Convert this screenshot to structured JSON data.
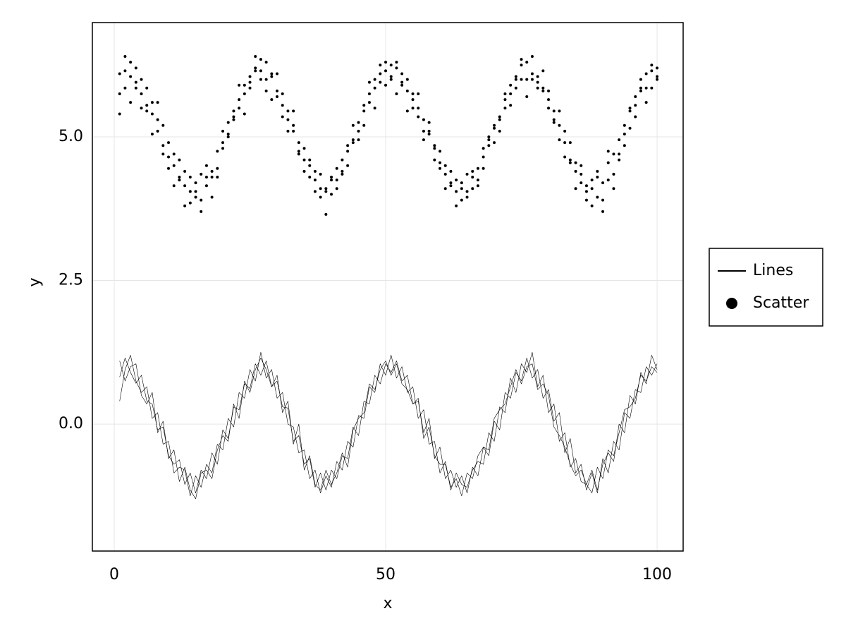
{
  "chart_data": {
    "type": "line",
    "xlabel": "x",
    "ylabel": "y",
    "xlim": [
      -4.03,
      104.8
    ],
    "ylim": [
      -2.21,
      6.99
    ],
    "xticks": [
      0,
      50,
      100
    ],
    "yticks": [
      {
        "value": 0,
        "label": "0.0"
      },
      {
        "value": 2.5,
        "label": "2.5"
      },
      {
        "value": 5,
        "label": "5.0"
      }
    ],
    "grid": true,
    "legend": "right",
    "x": [
      1,
      2,
      3,
      4,
      5,
      6,
      7,
      8,
      9,
      10,
      11,
      12,
      13,
      14,
      15,
      16,
      17,
      18,
      19,
      20,
      21,
      22,
      23,
      24,
      25,
      26,
      27,
      28,
      29,
      30,
      31,
      32,
      33,
      34,
      35,
      36,
      37,
      38,
      39,
      40,
      41,
      42,
      43,
      44,
      45,
      46,
      47,
      48,
      49,
      50,
      51,
      52,
      53,
      54,
      55,
      56,
      57,
      58,
      59,
      60,
      61,
      62,
      63,
      64,
      65,
      66,
      67,
      68,
      69,
      70,
      71,
      72,
      73,
      74,
      75,
      76,
      77,
      78,
      79,
      80,
      81,
      82,
      83,
      84,
      85,
      86,
      87,
      88,
      89,
      90,
      91,
      92,
      93,
      94,
      95,
      96,
      97,
      98,
      99,
      100
    ],
    "series": [
      {
        "name": "Lines",
        "type": "line",
        "color": "#000000",
        "values": [
          [
            0.82,
            1.15,
            0.9,
            0.71,
            0.85,
            0.4,
            0.35,
            -0.1,
            -0.05,
            -0.55,
            -0.7,
            -0.62,
            -1.05,
            -0.85,
            -1.2,
            -0.8,
            -0.95,
            -0.5,
            -0.7,
            -0.1,
            -0.25,
            0.3,
            0.25,
            0.7,
            0.62,
            1.05,
            0.85,
            1.1,
            0.65,
            0.75,
            0.3,
            0.28,
            -0.3,
            -0.2,
            -0.7,
            -0.6,
            -1.1,
            -0.85,
            -1.15,
            -0.8,
            -0.95,
            -0.55,
            -0.6,
            -0.05,
            -0.2,
            0.4,
            0.35,
            0.85,
            0.7,
            1.05,
            0.9,
            1.1,
            0.75,
            0.85,
            0.35,
            0.4,
            -0.15,
            0.1,
            -0.6,
            -0.4,
            -0.95,
            -0.8,
            -1.1,
            -0.9,
            -1.2,
            -0.75,
            -0.9,
            -0.4,
            -0.55,
            0.05,
            -0.1,
            0.55,
            0.45,
            0.9,
            0.75,
            1.15,
            0.8,
            0.95,
            0.45,
            0.6,
            0.05,
            0.2,
            -0.5,
            -0.25,
            -0.85,
            -0.7,
            -1.15,
            -0.85,
            -1.2,
            -0.6,
            -0.85,
            -0.3,
            -0.45,
            0.2,
            0.1,
            0.6,
            0.55,
            1.0,
            0.85,
            1.05
          ],
          [
            0.4,
            0.95,
            1.2,
            0.75,
            0.55,
            0.65,
            0.1,
            0.2,
            -0.35,
            -0.3,
            -0.85,
            -0.75,
            -0.8,
            -1.25,
            -0.9,
            -1.1,
            -0.7,
            -0.85,
            -0.35,
            -0.45,
            0.1,
            -0.05,
            0.55,
            0.45,
            0.95,
            0.75,
            1.25,
            0.8,
            0.95,
            0.45,
            0.55,
            0.0,
            -0.05,
            -0.5,
            -0.45,
            -0.95,
            -0.8,
            -1.2,
            -0.9,
            -1.1,
            -0.65,
            -0.8,
            -0.3,
            -0.4,
            0.15,
            0.1,
            0.65,
            0.55,
            1.05,
            0.85,
            1.2,
            0.8,
            1.0,
            0.55,
            0.65,
            0.1,
            0.25,
            -0.35,
            -0.3,
            -0.85,
            -0.65,
            -1.15,
            -0.85,
            -1.05,
            -1.1,
            -0.8,
            -0.65,
            -0.7,
            -0.15,
            -0.3,
            0.3,
            0.2,
            0.8,
            0.55,
            1.05,
            0.9,
            1.25,
            0.65,
            0.85,
            0.2,
            0.35,
            -0.3,
            -0.15,
            -0.75,
            -0.6,
            -1.0,
            -1.05,
            -0.8,
            -1.15,
            -0.7,
            -0.5,
            -0.65,
            0.0,
            -0.15,
            0.5,
            0.35,
            0.9,
            0.7,
            1.2,
            0.95
          ],
          [
            1.1,
            0.75,
            1.0,
            1.05,
            0.5,
            0.35,
            0.55,
            -0.15,
            0.05,
            -0.6,
            -0.45,
            -1.0,
            -0.75,
            -1.15,
            -1.3,
            -0.85,
            -0.8,
            -0.95,
            -0.45,
            -0.2,
            -0.3,
            0.35,
            0.1,
            0.75,
            0.55,
            0.95,
            1.15,
            0.95,
            0.65,
            0.85,
            0.2,
            0.4,
            -0.35,
            0.0,
            -0.8,
            -0.55,
            -1.05,
            -1.15,
            -0.8,
            -1.05,
            -0.85,
            -0.5,
            -0.75,
            -0.1,
            0.1,
            0.2,
            0.7,
            0.6,
            0.95,
            1.1,
            0.85,
            1.05,
            0.7,
            0.6,
            0.35,
            0.45,
            -0.25,
            -0.05,
            -0.55,
            -0.7,
            -0.7,
            -1.1,
            -0.95,
            -1.25,
            -0.85,
            -0.95,
            -0.55,
            -0.4,
            -0.45,
            0.1,
            0.25,
            0.35,
            0.65,
            0.95,
            0.7,
            1.0,
            1.05,
            0.6,
            0.7,
            0.5,
            -0.05,
            -0.2,
            -0.4,
            -0.7,
            -0.9,
            -0.8,
            -1.05,
            -1.2,
            -0.75,
            -0.95,
            -0.45,
            -0.55,
            -0.15,
            0.25,
            0.3,
            0.45,
            0.85,
            0.75,
            1.0,
            0.9
          ]
        ]
      },
      {
        "name": "Scatter",
        "type": "scatter",
        "color": "#000000",
        "values": [
          [
            6.1,
            6.4,
            6.05,
            5.95,
            5.75,
            5.85,
            5.4,
            5.3,
            4.85,
            4.9,
            4.5,
            4.3,
            4.4,
            4.05,
            4.2,
            4.35,
            4.3,
            4.4,
            4.75,
            4.9,
            5.25,
            5.3,
            5.65,
            5.75,
            6.05,
            6.2,
            6.15,
            6.3,
            6.05,
            5.8,
            5.55,
            5.45,
            5.1,
            4.9,
            4.6,
            4.5,
            4.25,
            4.35,
            4.1,
            4.3,
            4.25,
            4.6,
            4.75,
            4.9,
            5.25,
            5.45,
            5.75,
            5.85,
            6.1,
            6.15,
            6.25,
            6.2,
            5.95,
            6.0,
            5.65,
            5.5,
            5.3,
            5.1,
            4.8,
            4.55,
            4.5,
            4.2,
            4.25,
            4.1,
            4.35,
            4.3,
            4.45,
            4.8,
            4.85,
            5.15,
            5.3,
            5.65,
            5.75,
            6.05,
            6.0,
            6.3,
            6.1,
            6.05,
            5.85,
            5.65,
            5.3,
            5.2,
            4.9,
            4.55,
            4.4,
            4.35,
            4.15,
            4.25,
            4.3,
            4.2,
            4.55,
            4.7,
            4.95,
            5.2,
            5.45,
            5.7,
            5.85,
            6.1,
            6.15,
            6.2
          ],
          [
            5.75,
            6.15,
            6.3,
            5.85,
            6.0,
            5.55,
            5.6,
            5.1,
            5.2,
            4.65,
            4.7,
            4.25,
            4.15,
            4.3,
            3.95,
            3.9,
            4.15,
            4.3,
            4.45,
            4.8,
            5.05,
            5.45,
            5.5,
            5.9,
            5.85,
            6.15,
            6.35,
            6.0,
            6.1,
            5.7,
            5.75,
            5.3,
            5.2,
            4.75,
            4.8,
            4.3,
            4.4,
            3.95,
            4.05,
            4.0,
            4.45,
            4.35,
            4.85,
            4.95,
            5.1,
            5.55,
            5.6,
            6.0,
            5.95,
            6.3,
            6.05,
            6.3,
            5.9,
            5.8,
            5.75,
            5.35,
            5.1,
            5.05,
            4.85,
            4.45,
            4.35,
            4.15,
            4.05,
            4.2,
            3.95,
            4.1,
            4.25,
            4.65,
            4.95,
            4.9,
            5.35,
            5.5,
            5.9,
            5.85,
            6.25,
            6.0,
            6.4,
            5.95,
            5.8,
            5.8,
            5.45,
            4.95,
            5.1,
            4.6,
            4.55,
            4.2,
            4.05,
            4.1,
            3.95,
            3.9,
            4.25,
            4.35,
            4.7,
            5.05,
            5.15,
            5.55,
            5.8,
            5.85,
            6.25,
            6.0
          ],
          [
            5.4,
            5.85,
            5.6,
            6.2,
            5.5,
            5.45,
            5.05,
            5.6,
            4.7,
            4.45,
            4.15,
            4.6,
            3.8,
            3.85,
            4.05,
            3.7,
            4.5,
            3.95,
            4.3,
            5.1,
            5.0,
            5.35,
            5.9,
            5.4,
            5.95,
            6.4,
            6.0,
            5.8,
            5.65,
            6.1,
            5.35,
            5.1,
            5.45,
            4.7,
            4.4,
            4.6,
            4.05,
            4.1,
            3.65,
            4.25,
            4.1,
            4.4,
            4.5,
            5.2,
            4.95,
            5.2,
            5.95,
            5.5,
            6.25,
            5.9,
            6.0,
            5.75,
            6.1,
            5.45,
            5.5,
            5.75,
            4.95,
            5.25,
            4.6,
            4.75,
            4.1,
            4.4,
            3.8,
            3.9,
            4.05,
            4.4,
            4.15,
            4.45,
            5.0,
            5.2,
            5.1,
            5.75,
            5.55,
            6.0,
            6.35,
            5.7,
            6.0,
            5.85,
            6.15,
            5.5,
            5.25,
            5.45,
            4.65,
            4.9,
            4.1,
            4.5,
            3.9,
            3.8,
            4.4,
            3.7,
            4.75,
            4.1,
            4.6,
            4.85,
            5.5,
            5.35,
            6.0,
            5.6,
            5.85,
            6.05
          ]
        ]
      }
    ]
  }
}
